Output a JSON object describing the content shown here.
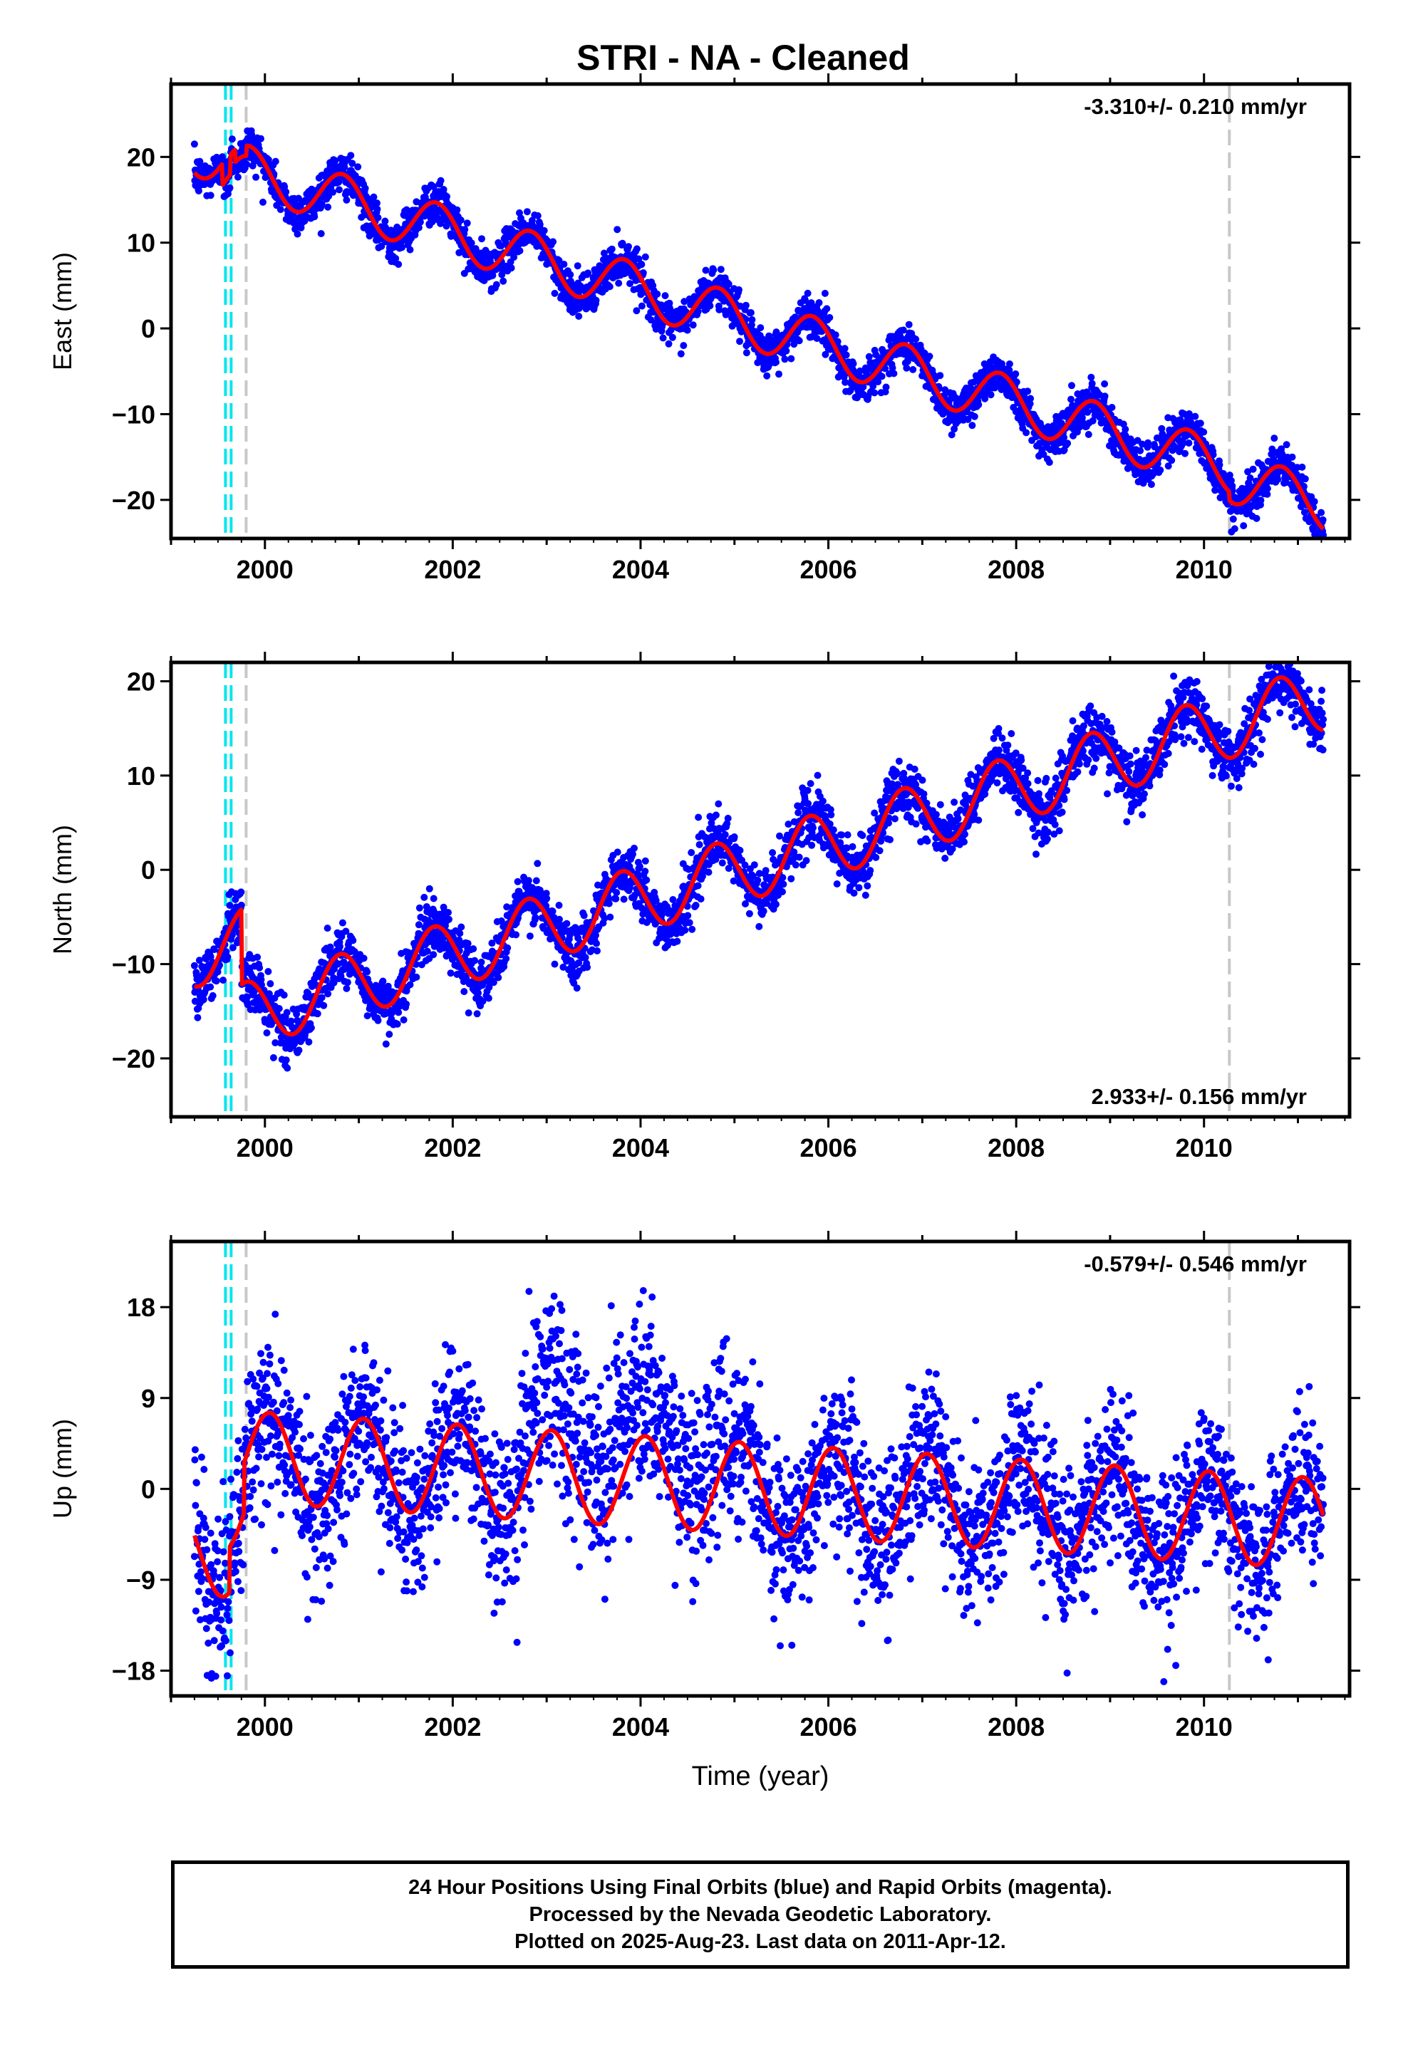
{
  "title": "STRI  - NA - Cleaned",
  "xlabel": "Time (year)",
  "caption": {
    "line1": "24 Hour Positions Using Final Orbits (blue) and Rapid Orbits (magenta).",
    "line2": "Processed by the Nevada Geodetic Laboratory.",
    "line3": "Plotted on 2025-Aug-23. Last data on 2011-Apr-12."
  },
  "colors": {
    "points": "#0000ff",
    "model": "#ff0000",
    "equipment_change": "#00e5ee",
    "other_event": "#c8c8c8"
  },
  "events": {
    "cyan": [
      1999.58,
      1999.64
    ],
    "gray": [
      1999.8,
      2010.27
    ]
  },
  "chart_data": [
    {
      "type": "scatter",
      "name": "east",
      "ylabel": "East (mm)",
      "rate_label": "-3.310+/- 0.210 mm/yr",
      "xlim": [
        1999.0,
        2011.55
      ],
      "ylim": [
        -24.5,
        28.5
      ],
      "xticks": [
        2000,
        2002,
        2004,
        2006,
        2008,
        2010
      ],
      "yticks": [
        -20,
        -10,
        0,
        10,
        20
      ],
      "tick_labels": [
        "−20",
        "−10",
        "0",
        "10",
        "20"
      ],
      "model": {
        "start": 1999.25,
        "end": 2011.27,
        "t0": 1999.25,
        "offset": 20.8,
        "rate": -3.31,
        "amp": 3.0,
        "phase": 2005.58,
        "noise": 1.2,
        "steps": [
          [
            1999.55,
            -2.5
          ],
          [
            1999.63,
            2.2
          ],
          [
            1999.68,
            -1.5
          ],
          [
            1999.8,
            1.2
          ],
          [
            2010.27,
            -1.0
          ]
        ]
      }
    },
    {
      "type": "scatter",
      "name": "north",
      "ylabel": "North (mm)",
      "rate_label": "2.933+/- 0.156 mm/yr",
      "xlim": [
        1999.0,
        2011.55
      ],
      "ylim": [
        -26.2,
        22.0
      ],
      "xticks": [
        2000,
        2002,
        2004,
        2006,
        2008,
        2010
      ],
      "yticks": [
        -20,
        -10,
        0,
        10,
        20
      ],
      "tick_labels": [
        "−20",
        "−10",
        "0",
        "10",
        "20"
      ],
      "model": {
        "start": 1999.25,
        "end": 2011.27,
        "t0": 1999.25,
        "offset": -9.0,
        "rate": 2.933,
        "amp": 3.5,
        "phase": 2005.55,
        "noise": 1.5,
        "steps": [
          [
            1999.75,
            -8.0
          ]
        ]
      }
    },
    {
      "type": "scatter",
      "name": "up",
      "ylabel": "Up (mm)",
      "rate_label": "-0.579+/- 0.546 mm/yr",
      "xlim": [
        1999.0,
        2011.55
      ],
      "ylim": [
        -20.5,
        24.5
      ],
      "xticks": [
        2000,
        2002,
        2004,
        2006,
        2008,
        2010
      ],
      "yticks": [
        -18,
        -9,
        0,
        9,
        18
      ],
      "tick_labels": [
        "−18",
        "−9",
        "0",
        "9",
        "18"
      ],
      "model": {
        "start": 1999.25,
        "end": 2011.27,
        "t0": 1999.25,
        "offset": -6.0,
        "rate": -0.579,
        "amp": 4.5,
        "phase": 2005.8,
        "noise": 3.8,
        "steps": [
          [
            1999.62,
            4.5
          ],
          [
            1999.78,
            5.0
          ]
        ]
      }
    }
  ]
}
